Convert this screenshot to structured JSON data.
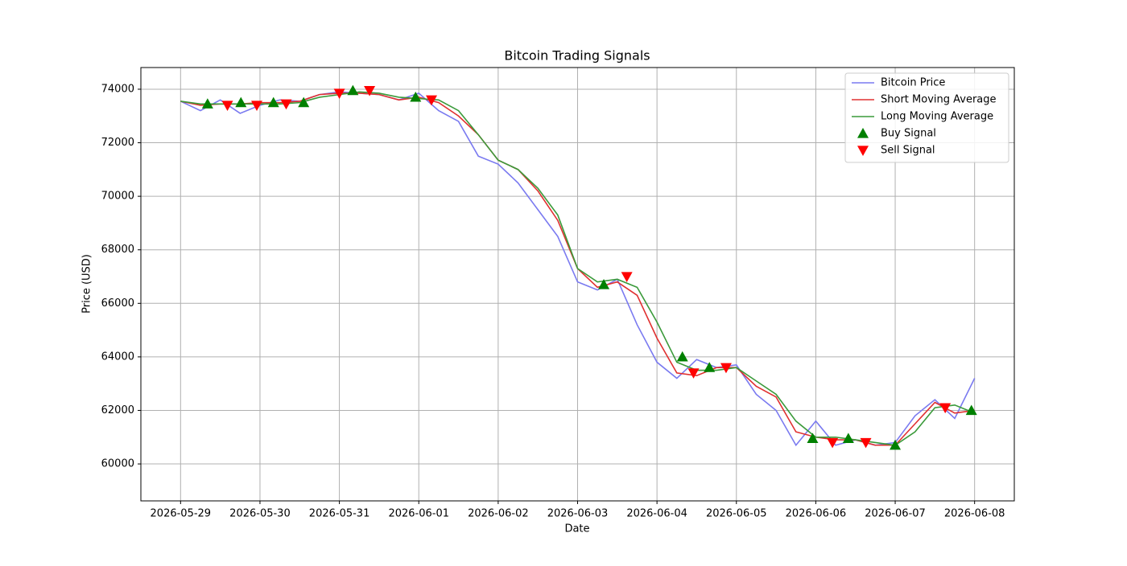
{
  "chart_data": {
    "type": "line",
    "title": "Bitcoin Trading Signals",
    "xlabel": "Date",
    "ylabel": "Price (USD)",
    "x": [
      0,
      0.25,
      0.5,
      0.75,
      1,
      1.25,
      1.5,
      1.75,
      2,
      2.25,
      2.5,
      2.75,
      3,
      3.25,
      3.5,
      3.75,
      4,
      4.25,
      4.5,
      4.75,
      5,
      5.25,
      5.5,
      5.75,
      6,
      6.25,
      6.5,
      6.75,
      7,
      7.25,
      7.5,
      7.75,
      8,
      8.25,
      8.5,
      8.75,
      9,
      9.25,
      9.5,
      9.75,
      10
    ],
    "xlim": [
      -0.5,
      10.5
    ],
    "xticks": [
      {
        "value": 0,
        "label": "2026-05-29"
      },
      {
        "value": 1,
        "label": "2026-05-30"
      },
      {
        "value": 2,
        "label": "2026-05-31"
      },
      {
        "value": 3,
        "label": "2026-06-01"
      },
      {
        "value": 4,
        "label": "2026-06-02"
      },
      {
        "value": 5,
        "label": "2026-06-03"
      },
      {
        "value": 6,
        "label": "2026-06-04"
      },
      {
        "value": 7,
        "label": "2026-06-05"
      },
      {
        "value": 8,
        "label": "2026-06-06"
      },
      {
        "value": 9,
        "label": "2026-06-07"
      },
      {
        "value": 10,
        "label": "2026-06-08"
      }
    ],
    "ylim": [
      58620,
      74810
    ],
    "yticks": [
      60000,
      62000,
      64000,
      66000,
      68000,
      70000,
      72000,
      74000
    ],
    "grid": true,
    "legend": "upper right",
    "series": [
      {
        "name": "Bitcoin Price",
        "type": "line",
        "color": "#7a7af0",
        "values": [
          73550,
          73200,
          73600,
          73100,
          73400,
          73600,
          73550,
          73800,
          73900,
          73850,
          73800,
          73600,
          73850,
          73200,
          72800,
          71500,
          71200,
          70500,
          69500,
          68500,
          66800,
          66500,
          66900,
          65200,
          63800,
          63200,
          63900,
          63600,
          63700,
          62600,
          62000,
          60700,
          61600,
          60700,
          60900,
          60700,
          60800,
          61800,
          62400,
          61700,
          63200
        ]
      },
      {
        "name": "Short Moving Average",
        "type": "line",
        "color": "#e03030",
        "values": [
          73550,
          73400,
          73450,
          73450,
          73500,
          73500,
          73550,
          73800,
          73850,
          73850,
          73800,
          73600,
          73700,
          73500,
          73000,
          72300,
          71350,
          71000,
          70200,
          69100,
          67300,
          66600,
          66800,
          66300,
          64700,
          63400,
          63300,
          63600,
          63600,
          62900,
          62500,
          61200,
          61000,
          60900,
          60900,
          60700,
          60700,
          61500,
          62300,
          61900,
          62000
        ]
      },
      {
        "name": "Long Moving Average",
        "type": "line",
        "color": "#3a9a3a",
        "values": [
          73550,
          73450,
          73450,
          73450,
          73450,
          73450,
          73500,
          73700,
          73800,
          73900,
          73850,
          73700,
          73650,
          73600,
          73200,
          72300,
          71350,
          71000,
          70300,
          69300,
          67300,
          66800,
          66900,
          66600,
          65300,
          63800,
          63500,
          63500,
          63600,
          63100,
          62600,
          61600,
          61000,
          61000,
          60900,
          60800,
          60700,
          61200,
          62100,
          62200,
          61900
        ]
      },
      {
        "name": "Buy Signal",
        "type": "scatter",
        "marker": "triangle-up",
        "color": "#008000",
        "x": [
          0.34,
          0.76,
          1.17,
          1.55,
          2.17,
          2.96,
          5.33,
          6.32,
          6.66,
          7.96,
          8.41,
          9.0,
          9.96
        ],
        "values": [
          73450,
          73500,
          73500,
          73500,
          73950,
          73700,
          66700,
          64000,
          63600,
          60950,
          60950,
          60700,
          62000
        ]
      },
      {
        "name": "Sell Signal",
        "type": "scatter",
        "marker": "triangle-down",
        "color": "#ff0000",
        "x": [
          0.59,
          0.96,
          1.33,
          2.0,
          2.38,
          3.16,
          5.62,
          6.46,
          6.87,
          8.21,
          8.63,
          9.63
        ],
        "values": [
          73400,
          73400,
          73450,
          73850,
          73950,
          73600,
          67000,
          63400,
          63600,
          60800,
          60800,
          62100
        ]
      }
    ]
  }
}
